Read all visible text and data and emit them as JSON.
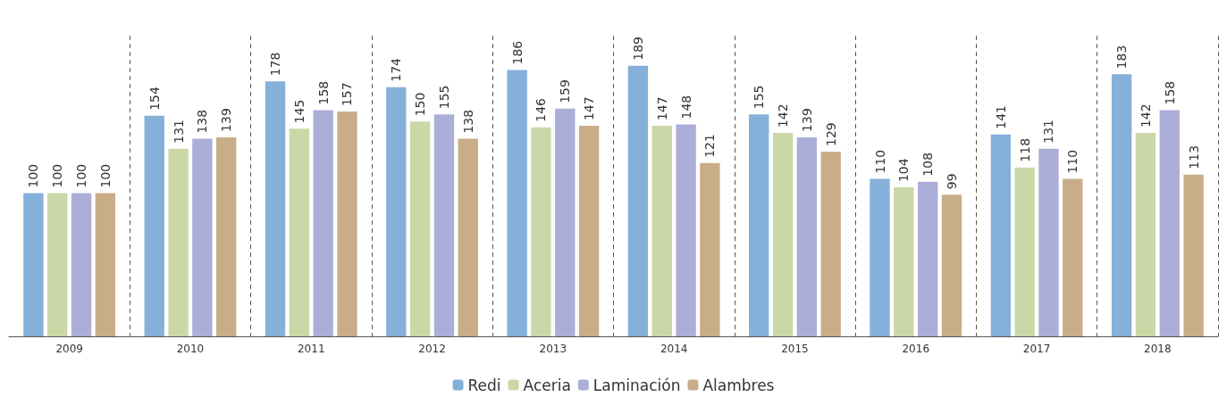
{
  "chart_data": {
    "type": "bar",
    "categories": [
      "2009",
      "2010",
      "2011",
      "2012",
      "2013",
      "2014",
      "2015",
      "2016",
      "2017",
      "2018"
    ],
    "series": [
      {
        "name": "Redi",
        "color": "#85b0d9",
        "values": [
          100,
          154,
          178,
          174,
          186,
          189,
          155,
          110,
          141,
          183
        ]
      },
      {
        "name": "Aceria",
        "color": "#c9d8a6",
        "values": [
          100,
          131,
          145,
          150,
          146,
          147,
          142,
          104,
          118,
          142
        ]
      },
      {
        "name": "Laminación",
        "color": "#aaaed8",
        "values": [
          100,
          138,
          158,
          155,
          159,
          148,
          139,
          108,
          131,
          158
        ]
      },
      {
        "name": "Alambres",
        "color": "#c8ad88",
        "values": [
          100,
          139,
          157,
          138,
          147,
          121,
          129,
          99,
          110,
          113
        ]
      }
    ],
    "data_labels": true,
    "grid": "x",
    "legend": "bottom",
    "tick_labels": "x"
  }
}
